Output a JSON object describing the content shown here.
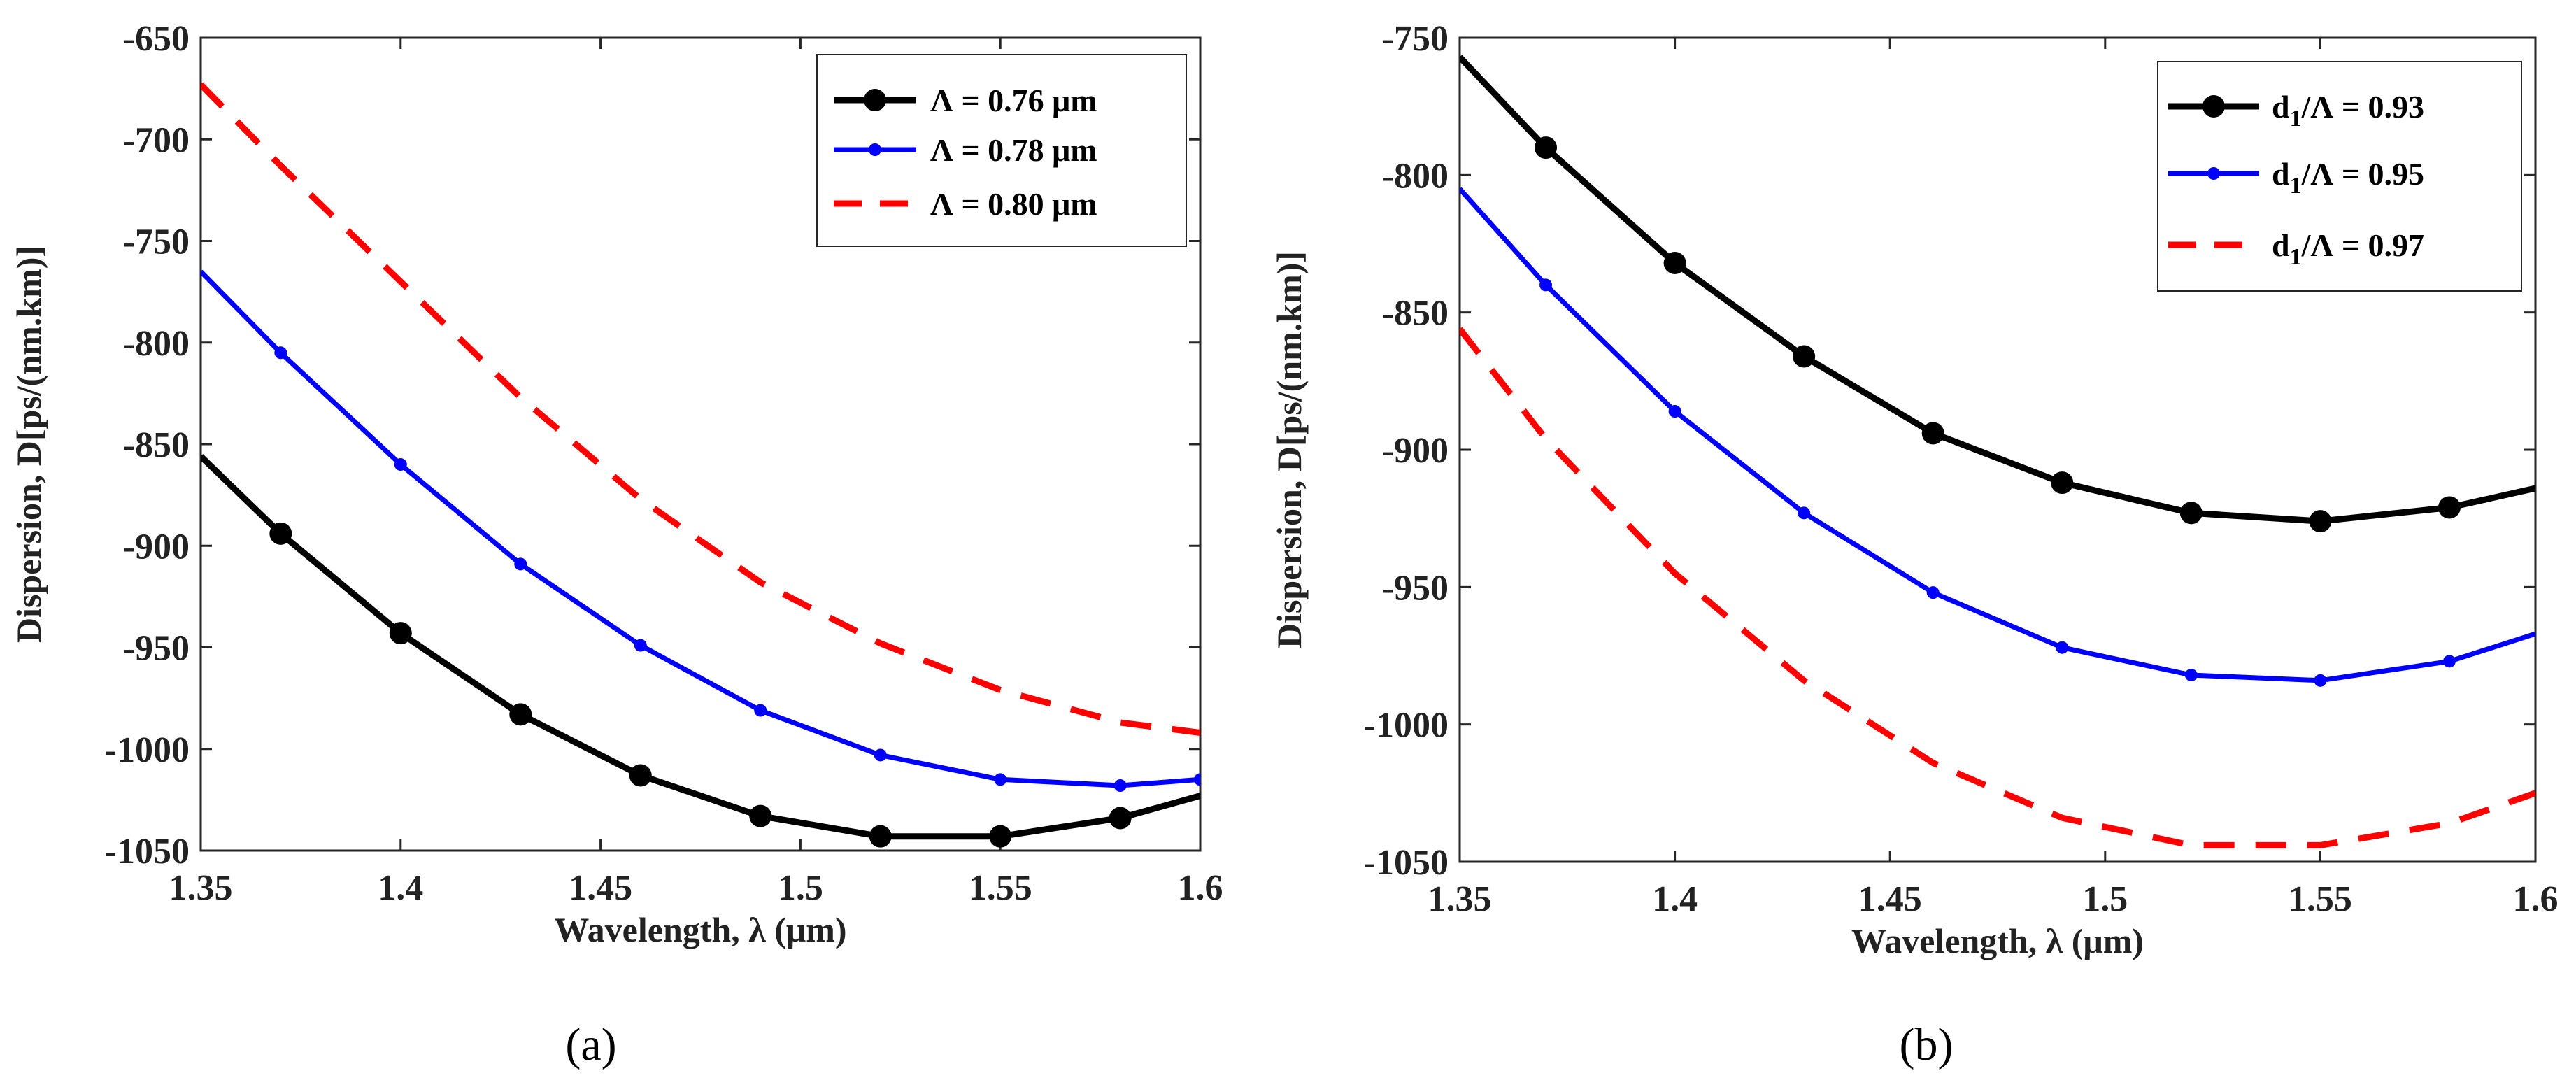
{
  "chart_data": [
    {
      "type": "line",
      "panel_label": "(a)",
      "xlabel": "Wavelength, λ (μm)",
      "ylabel": "Dispersion, D[ps/(nm.km)]",
      "xlim": [
        1.35,
        1.6
      ],
      "ylim": [
        -1050,
        -650
      ],
      "x_ticks": [
        1.35,
        1.4,
        1.45,
        1.5,
        1.55,
        1.6
      ],
      "x_tick_labels": [
        "1.35",
        "1.4",
        "1.45",
        "1.5",
        "1.55",
        "1.6"
      ],
      "y_ticks": [
        -650,
        -700,
        -750,
        -800,
        -850,
        -900,
        -950,
        -1000,
        -1050
      ],
      "y_tick_labels": [
        "-650",
        "-700",
        "-750",
        "-800",
        "-850",
        "-900",
        "-950",
        "-1000",
        "-1050"
      ],
      "legend_position": "top-right",
      "series": [
        {
          "name": "Λ = 0.76 μm",
          "color": "#000000",
          "style": "solid",
          "marker": "large-dot",
          "x": [
            1.35,
            1.37,
            1.4,
            1.43,
            1.46,
            1.49,
            1.52,
            1.55,
            1.58,
            1.6
          ],
          "y": [
            -856,
            -894,
            -943,
            -983,
            -1013,
            -1033,
            -1043,
            -1043,
            -1034,
            -1023
          ],
          "marker_x": [
            1.37,
            1.4,
            1.43,
            1.46,
            1.49,
            1.52,
            1.55,
            1.58
          ]
        },
        {
          "name": "Λ = 0.78 μm",
          "color": "#0000ff",
          "style": "solid",
          "marker": "small-dot",
          "x": [
            1.35,
            1.37,
            1.4,
            1.43,
            1.46,
            1.49,
            1.52,
            1.55,
            1.58,
            1.6
          ],
          "y": [
            -765,
            -805,
            -860,
            -909,
            -949,
            -981,
            -1003,
            -1015,
            -1018,
            -1015
          ],
          "marker_x": [
            1.37,
            1.4,
            1.43,
            1.46,
            1.49,
            1.52,
            1.55,
            1.58,
            1.6
          ]
        },
        {
          "name": "Λ = 0.80 μm",
          "color": "#ff0000",
          "style": "dashed",
          "marker": "none",
          "x": [
            1.35,
            1.37,
            1.4,
            1.43,
            1.46,
            1.49,
            1.52,
            1.55,
            1.58,
            1.6
          ],
          "y": [
            -673,
            -713,
            -770,
            -827,
            -877,
            -918,
            -948,
            -971,
            -987,
            -992
          ],
          "marker_x": []
        }
      ]
    },
    {
      "type": "line",
      "panel_label": "(b)",
      "xlabel": "Wavelength, λ (μm)",
      "ylabel": "Dispersion, D[ps/(nm.km)]",
      "xlim": [
        1.35,
        1.6
      ],
      "ylim": [
        -1050,
        -750
      ],
      "x_ticks": [
        1.35,
        1.4,
        1.45,
        1.5,
        1.55,
        1.6
      ],
      "x_tick_labels": [
        "1.35",
        "1.4",
        "1.45",
        "1.5",
        "1.55",
        "1.6"
      ],
      "y_ticks": [
        -750,
        -800,
        -850,
        -900,
        -950,
        -1000,
        -1050
      ],
      "y_tick_labels": [
        "-750",
        "-800",
        "-850",
        "-900",
        "-950",
        "-1000",
        "-1050"
      ],
      "legend_position": "top-right",
      "series": [
        {
          "name": "d1/Λ = 0.93",
          "name_main": "d",
          "name_sub": "1",
          "name_rest": "/Λ = 0.93",
          "color": "#000000",
          "style": "solid",
          "marker": "large-dot",
          "x": [
            1.35,
            1.37,
            1.4,
            1.43,
            1.46,
            1.49,
            1.52,
            1.55,
            1.58,
            1.6
          ],
          "y": [
            -757,
            -790,
            -832,
            -866,
            -894,
            -912,
            -923,
            -926,
            -921,
            -914
          ],
          "marker_x": [
            1.37,
            1.4,
            1.43,
            1.46,
            1.49,
            1.52,
            1.55,
            1.58
          ]
        },
        {
          "name": "d1/Λ = 0.95",
          "name_main": "d",
          "name_sub": "1",
          "name_rest": "/Λ = 0.95",
          "color": "#0000ff",
          "style": "solid",
          "marker": "small-dot",
          "x": [
            1.35,
            1.37,
            1.4,
            1.43,
            1.46,
            1.49,
            1.52,
            1.55,
            1.58,
            1.6
          ],
          "y": [
            -805,
            -840,
            -886,
            -923,
            -952,
            -972,
            -982,
            -984,
            -977,
            -967
          ],
          "marker_x": [
            1.37,
            1.4,
            1.43,
            1.46,
            1.49,
            1.52,
            1.55,
            1.58
          ]
        },
        {
          "name": "d1/Λ = 0.97",
          "name_main": "d",
          "name_sub": "1",
          "name_rest": "/Λ = 0.97",
          "color": "#ff0000",
          "style": "dashed",
          "marker": "none",
          "x": [
            1.35,
            1.37,
            1.4,
            1.43,
            1.46,
            1.49,
            1.52,
            1.55,
            1.58,
            1.6
          ],
          "y": [
            -856,
            -896,
            -945,
            -984,
            -1014,
            -1034,
            -1044,
            -1044,
            -1036,
            -1025
          ],
          "marker_x": []
        }
      ]
    }
  ]
}
